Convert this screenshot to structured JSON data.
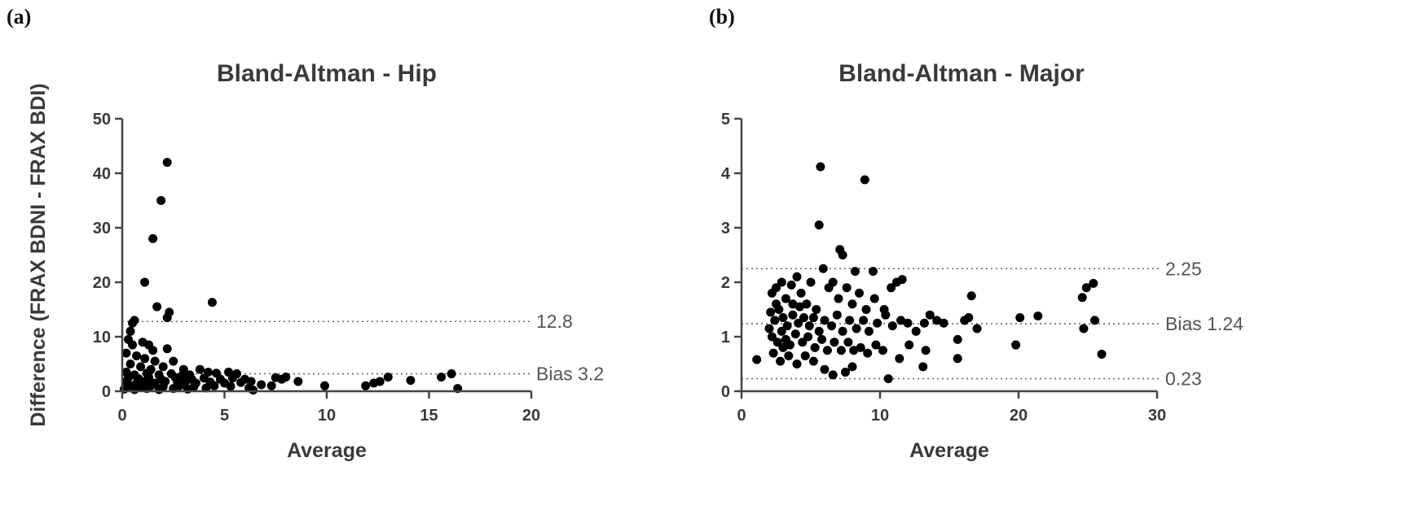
{
  "panels": [
    {
      "letter": "(a)"
    },
    {
      "letter": "(b)"
    }
  ],
  "chart_data": [
    {
      "type": "scatter",
      "title": "Bland-Altman - Hip",
      "xlabel": "Average",
      "ylabel": "Difference (FRAX BDNI - FRAX BDI)",
      "xlim": [
        0,
        20
      ],
      "ylim": [
        0,
        50
      ],
      "xticks": [
        0,
        5,
        10,
        15,
        20
      ],
      "yticks": [
        0,
        10,
        20,
        30,
        40,
        50
      ],
      "grid": false,
      "reference_lines": [
        {
          "y": 12.8,
          "label": "12.8"
        },
        {
          "y": 3.2,
          "label": "Bias 3.2"
        }
      ],
      "points": [
        [
          2.2,
          42
        ],
        [
          1.9,
          35
        ],
        [
          1.5,
          28
        ],
        [
          1.1,
          20
        ],
        [
          1.7,
          15.5
        ],
        [
          2.3,
          14.5
        ],
        [
          2.2,
          13.5
        ],
        [
          4.4,
          16.3
        ],
        [
          0.4,
          11
        ],
        [
          0.5,
          12.5
        ],
        [
          0.6,
          13
        ],
        [
          0.3,
          9.5
        ],
        [
          0.5,
          8.5
        ],
        [
          1.0,
          9
        ],
        [
          1.3,
          8.5
        ],
        [
          1.5,
          7.5
        ],
        [
          2.2,
          7.8
        ],
        [
          0.2,
          7
        ],
        [
          0.7,
          6.5
        ],
        [
          1.1,
          6
        ],
        [
          1.6,
          5.5
        ],
        [
          2.5,
          5.5
        ],
        [
          0.4,
          5
        ],
        [
          0.9,
          4.5
        ],
        [
          1.4,
          4
        ],
        [
          2.0,
          4.5
        ],
        [
          3.0,
          4
        ],
        [
          3.8,
          4
        ],
        [
          4.2,
          3.5
        ],
        [
          4.6,
          3.3
        ],
        [
          5.2,
          3.5
        ],
        [
          5.6,
          3.2
        ],
        [
          0.2,
          3.5
        ],
        [
          0.6,
          3
        ],
        [
          1.2,
          3.3
        ],
        [
          1.8,
          3
        ],
        [
          2.4,
          3.2
        ],
        [
          2.9,
          2.8
        ],
        [
          3.3,
          3
        ],
        [
          0.3,
          2.5
        ],
        [
          0.8,
          2.3
        ],
        [
          1.3,
          2.5
        ],
        [
          1.9,
          2.2
        ],
        [
          2.6,
          2.5
        ],
        [
          3.4,
          2.2
        ],
        [
          4.0,
          2.4
        ],
        [
          4.8,
          2.2
        ],
        [
          5.4,
          2.4
        ],
        [
          6.0,
          2.2
        ],
        [
          0.2,
          1.8
        ],
        [
          0.7,
          1.5
        ],
        [
          1.1,
          1.8
        ],
        [
          1.6,
          1.5
        ],
        [
          2.1,
          1.8
        ],
        [
          2.7,
          1.5
        ],
        [
          3.1,
          1.8
        ],
        [
          3.6,
          1.5
        ],
        [
          4.3,
          1.7
        ],
        [
          5.0,
          1.5
        ],
        [
          5.8,
          1.6
        ],
        [
          6.3,
          1.8
        ],
        [
          0.4,
          1
        ],
        [
          0.9,
          0.8
        ],
        [
          1.4,
          1
        ],
        [
          2.0,
          0.8
        ],
        [
          2.8,
          1
        ],
        [
          3.5,
          0.8
        ],
        [
          4.5,
          1
        ],
        [
          5.3,
          0.9
        ],
        [
          6.2,
          0.6
        ],
        [
          0.1,
          0.4
        ],
        [
          0.6,
          0.3
        ],
        [
          1.2,
          0.5
        ],
        [
          1.8,
          0.3
        ],
        [
          2.5,
          0.5
        ],
        [
          3.2,
          0.4
        ],
        [
          4.1,
          0.6
        ],
        [
          7.3,
          1
        ],
        [
          7.5,
          2.5
        ],
        [
          7.8,
          2.2
        ],
        [
          8.0,
          2.6
        ],
        [
          8.6,
          1.8
        ],
        [
          9.9,
          1
        ],
        [
          11.9,
          1
        ],
        [
          12.3,
          1.5
        ],
        [
          12.6,
          1.8
        ],
        [
          13.0,
          2.6
        ],
        [
          14.1,
          2
        ],
        [
          15.6,
          2.6
        ],
        [
          16.1,
          3.2
        ],
        [
          16.4,
          0.5
        ],
        [
          6.4,
          0.2
        ],
        [
          6.8,
          1.2
        ]
      ]
    },
    {
      "type": "scatter",
      "title": "Bland-Altman - Major",
      "xlabel": "Average",
      "ylabel": "Difference (FRAX BDNI - FRAX BDI)",
      "xlim": [
        0,
        30
      ],
      "ylim": [
        0,
        5
      ],
      "xticks": [
        0,
        10,
        20,
        30
      ],
      "yticks": [
        0,
        1,
        2,
        3,
        4,
        5
      ],
      "grid": false,
      "reference_lines": [
        {
          "y": 2.25,
          "label": "2.25"
        },
        {
          "y": 1.24,
          "label": "Bias 1.24"
        },
        {
          "y": 0.23,
          "label": "0.23"
        }
      ],
      "points": [
        [
          5.7,
          4.12
        ],
        [
          8.9,
          3.88
        ],
        [
          5.6,
          3.05
        ],
        [
          7.1,
          2.6
        ],
        [
          7.3,
          2.5
        ],
        [
          5.9,
          2.25
        ],
        [
          8.2,
          2.2
        ],
        [
          9.5,
          2.2
        ],
        [
          2.2,
          1.8
        ],
        [
          2.5,
          1.9
        ],
        [
          2.9,
          2.0
        ],
        [
          3.2,
          1.7
        ],
        [
          3.6,
          1.95
        ],
        [
          4.0,
          2.1
        ],
        [
          4.3,
          1.8
        ],
        [
          4.7,
          1.6
        ],
        [
          5.0,
          2.0
        ],
        [
          5.4,
          1.5
        ],
        [
          6.3,
          1.9
        ],
        [
          6.6,
          2.0
        ],
        [
          7.0,
          1.7
        ],
        [
          7.6,
          1.9
        ],
        [
          8.0,
          1.6
        ],
        [
          8.5,
          1.8
        ],
        [
          9.0,
          1.5
        ],
        [
          9.6,
          1.7
        ],
        [
          10.3,
          1.5
        ],
        [
          10.8,
          1.9
        ],
        [
          11.2,
          2.0
        ],
        [
          11.6,
          2.05
        ],
        [
          2.1,
          1.45
        ],
        [
          2.4,
          1.3
        ],
        [
          2.7,
          1.5
        ],
        [
          3.0,
          1.35
        ],
        [
          3.3,
          1.2
        ],
        [
          3.7,
          1.4
        ],
        [
          4.1,
          1.25
        ],
        [
          4.5,
          1.35
        ],
        [
          4.9,
          1.2
        ],
        [
          5.2,
          1.35
        ],
        [
          5.6,
          1.1
        ],
        [
          6.0,
          1.3
        ],
        [
          6.5,
          1.2
        ],
        [
          6.9,
          1.4
        ],
        [
          7.3,
          1.1
        ],
        [
          7.8,
          1.3
        ],
        [
          8.3,
          1.15
        ],
        [
          8.8,
          1.3
        ],
        [
          9.2,
          1.1
        ],
        [
          9.8,
          1.25
        ],
        [
          10.4,
          1.4
        ],
        [
          10.9,
          1.2
        ],
        [
          11.5,
          1.3
        ],
        [
          12.0,
          1.25
        ],
        [
          12.6,
          1.1
        ],
        [
          13.2,
          1.25
        ],
        [
          13.6,
          1.4
        ],
        [
          14.1,
          1.3
        ],
        [
          2.2,
          1.0
        ],
        [
          2.6,
          0.9
        ],
        [
          2.9,
          1.1
        ],
        [
          3.2,
          0.95
        ],
        [
          3.5,
          0.85
        ],
        [
          3.9,
          1.05
        ],
        [
          4.4,
          0.9
        ],
        [
          4.8,
          1.0
        ],
        [
          5.3,
          0.8
        ],
        [
          5.8,
          0.95
        ],
        [
          6.2,
          0.75
        ],
        [
          6.7,
          0.9
        ],
        [
          7.2,
          0.75
        ],
        [
          7.7,
          0.9
        ],
        [
          8.1,
          0.75
        ],
        [
          8.6,
          0.8
        ],
        [
          9.1,
          0.7
        ],
        [
          9.7,
          0.85
        ],
        [
          10.2,
          0.75
        ],
        [
          2.3,
          0.7
        ],
        [
          2.8,
          0.55
        ],
        [
          3.4,
          0.65
        ],
        [
          4.0,
          0.5
        ],
        [
          4.6,
          0.65
        ],
        [
          5.2,
          0.55
        ],
        [
          6.0,
          0.4
        ],
        [
          6.6,
          0.3
        ],
        [
          7.5,
          0.35
        ],
        [
          8.0,
          0.45
        ],
        [
          1.1,
          0.58
        ],
        [
          2.0,
          1.15
        ],
        [
          2.5,
          1.6
        ],
        [
          3.0,
          0.8
        ],
        [
          3.7,
          1.6
        ],
        [
          4.2,
          1.55
        ],
        [
          10.6,
          0.23
        ],
        [
          11.4,
          0.6
        ],
        [
          12.1,
          0.85
        ],
        [
          13.1,
          0.45
        ],
        [
          13.3,
          0.75
        ],
        [
          14.6,
          1.25
        ],
        [
          15.6,
          0.95
        ],
        [
          15.6,
          0.6
        ],
        [
          16.1,
          1.3
        ],
        [
          16.4,
          1.35
        ],
        [
          16.6,
          1.75
        ],
        [
          17.0,
          1.15
        ],
        [
          19.8,
          0.85
        ],
        [
          20.1,
          1.35
        ],
        [
          21.4,
          1.38
        ],
        [
          24.6,
          1.72
        ],
        [
          24.7,
          1.15
        ],
        [
          24.9,
          1.9
        ],
        [
          25.4,
          1.98
        ],
        [
          25.5,
          1.3
        ],
        [
          26.0,
          0.68
        ]
      ]
    }
  ]
}
